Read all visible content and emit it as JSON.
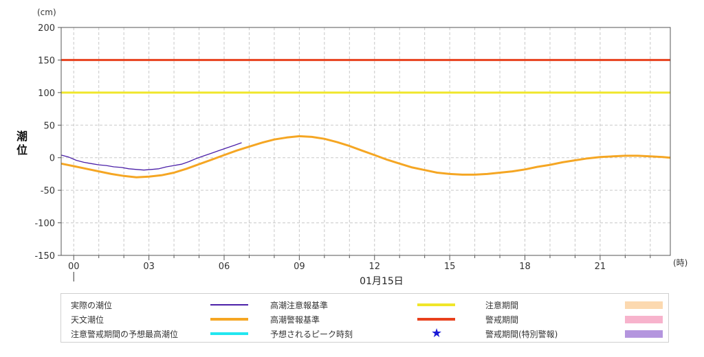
{
  "chart_data": {
    "type": "line",
    "title": "",
    "xlabel": "01月15日",
    "ylabel": "潮位",
    "y_unit": "(cm)",
    "x_unit": "(時)",
    "xlim": [
      -0.5,
      23.8
    ],
    "ylim": [
      -150,
      200
    ],
    "yticks": [
      200,
      150,
      100,
      50,
      0,
      -50,
      -100,
      -150
    ],
    "xticks": [
      "00",
      "03",
      "06",
      "09",
      "12",
      "15",
      "18",
      "21"
    ],
    "grid": true,
    "series": [
      {
        "name": "天文潮位",
        "color": "#f5a623",
        "x": [
          -0.5,
          0,
          0.5,
          1,
          1.5,
          2,
          2.5,
          3,
          3.5,
          4,
          4.5,
          5,
          5.5,
          6,
          6.5,
          7,
          7.5,
          8,
          8.5,
          9,
          9.5,
          10,
          10.5,
          11,
          11.5,
          12,
          12.5,
          13,
          13.5,
          14,
          14.5,
          15,
          15.5,
          16,
          16.5,
          17,
          17.5,
          18,
          18.5,
          19,
          19.5,
          20,
          20.5,
          21,
          21.5,
          22,
          22.5,
          23,
          23.5,
          23.8
        ],
        "y": [
          -9,
          -13,
          -17,
          -21,
          -25,
          -28,
          -30,
          -29,
          -27,
          -23,
          -17,
          -10,
          -3,
          4,
          11,
          17,
          23,
          28,
          31,
          33,
          32,
          29,
          24,
          18,
          11,
          4,
          -3,
          -9,
          -15,
          -19,
          -23,
          -25,
          -26,
          -26,
          -25,
          -23,
          -21,
          -18,
          -14,
          -11,
          -7,
          -4,
          -1,
          1,
          2,
          3,
          3,
          2,
          1,
          0
        ]
      },
      {
        "name": "実際の潮位",
        "color": "#4a1fa8",
        "x": [
          -0.5,
          -0.2,
          0.1,
          0.4,
          0.7,
          1.0,
          1.3,
          1.6,
          1.9,
          2.2,
          2.5,
          2.8,
          3.1,
          3.4,
          3.7,
          4.0,
          4.3,
          4.6,
          4.9,
          5.2,
          5.5,
          5.8,
          6.1,
          6.4,
          6.7
        ],
        "y": [
          4,
          1,
          -4,
          -7,
          -9,
          -11,
          -12,
          -14,
          -15,
          -17,
          -18,
          -19,
          -18,
          -17,
          -14,
          -12,
          -10,
          -6,
          -1,
          3,
          7,
          11,
          15,
          19,
          23
        ]
      }
    ],
    "reference_lines": [
      {
        "name": "高潮注意報基準",
        "value": 100,
        "color": "#f0e62a"
      },
      {
        "name": "高潮警報基準",
        "value": 150,
        "color": "#e8401c"
      }
    ]
  },
  "legend": {
    "items": [
      {
        "label": "実際の潮位",
        "kind": "line",
        "color": "#4a1fa8"
      },
      {
        "label": "高潮注意報基準",
        "kind": "line",
        "color": "#f0e62a"
      },
      {
        "label": "注意期間",
        "kind": "band",
        "color": "#fcd9b0"
      },
      {
        "label": "天文潮位",
        "kind": "line",
        "color": "#f5a623"
      },
      {
        "label": "高潮警報基準",
        "kind": "line",
        "color": "#e8401c"
      },
      {
        "label": "警戒期間",
        "kind": "band",
        "color": "#f7b3cc"
      },
      {
        "label": "注意警戒期間の予想最高潮位",
        "kind": "line",
        "color": "#22e6f0"
      },
      {
        "label": "予想されるピーク時刻",
        "kind": "star",
        "color": "#1a1ad6"
      },
      {
        "label": "警戒期間(特別警報)",
        "kind": "band",
        "color": "#b495de"
      }
    ]
  }
}
